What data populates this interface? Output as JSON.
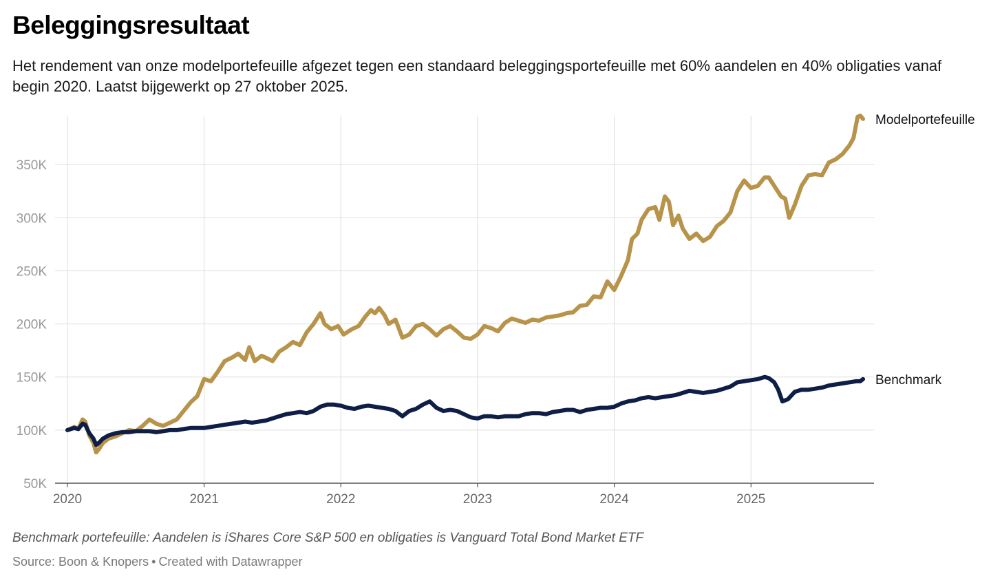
{
  "header": {
    "title": "Beleggingsresultaat",
    "subtitle": "Het rendement van onze modelportefeuille afgezet tegen een standaard beleggingsportefeuille met 60% aandelen en 40% obligaties vanaf begin 2020. Laatst bijgewerkt op 27 oktober 2025."
  },
  "footer": {
    "note": "Benchmark portefeuille: Aandelen is iShares Core S&P 500 en obligaties is Vanguard Total Bond Market ETF",
    "source": "Source: Boon & Knopers",
    "separator": "•",
    "credit": "Created with Datawrapper"
  },
  "colors": {
    "model": "#B8934A",
    "benchmark": "#0E1E46",
    "grid": "#DDDDDD",
    "tick_text": "#999999",
    "axis_text": "#666666"
  },
  "chart_data": {
    "type": "line",
    "title": "Beleggingsresultaat",
    "xlabel": "",
    "ylabel": "",
    "xlim": [
      2020.0,
      2025.9
    ],
    "ylim": [
      50000,
      400000
    ],
    "grid": true,
    "x_ticks": [
      {
        "value": 2020,
        "label": "2020"
      },
      {
        "value": 2021,
        "label": "2021"
      },
      {
        "value": 2022,
        "label": "2022"
      },
      {
        "value": 2023,
        "label": "2023"
      },
      {
        "value": 2024,
        "label": "2024"
      },
      {
        "value": 2025,
        "label": "2025"
      }
    ],
    "y_ticks": [
      {
        "value": 50000,
        "label": "50K"
      },
      {
        "value": 100000,
        "label": "100K"
      },
      {
        "value": 150000,
        "label": "150K"
      },
      {
        "value": 200000,
        "label": "200K"
      },
      {
        "value": 250000,
        "label": "250K"
      },
      {
        "value": 300000,
        "label": "300K"
      },
      {
        "value": 350000,
        "label": "350K"
      }
    ],
    "series": [
      {
        "name": "Modelportefeuille",
        "color": "#B8934A",
        "points": [
          [
            2020.0,
            100000
          ],
          [
            2020.05,
            103000
          ],
          [
            2020.08,
            101000
          ],
          [
            2020.11,
            110000
          ],
          [
            2020.13,
            108000
          ],
          [
            2020.16,
            95000
          ],
          [
            2020.19,
            88000
          ],
          [
            2020.21,
            79000
          ],
          [
            2020.23,
            82000
          ],
          [
            2020.26,
            88000
          ],
          [
            2020.3,
            92000
          ],
          [
            2020.35,
            94000
          ],
          [
            2020.4,
            97000
          ],
          [
            2020.45,
            100000
          ],
          [
            2020.5,
            99000
          ],
          [
            2020.55,
            104000
          ],
          [
            2020.6,
            110000
          ],
          [
            2020.65,
            106000
          ],
          [
            2020.7,
            104000
          ],
          [
            2020.75,
            107000
          ],
          [
            2020.8,
            110000
          ],
          [
            2020.85,
            118000
          ],
          [
            2020.9,
            126000
          ],
          [
            2020.95,
            132000
          ],
          [
            2021.0,
            148000
          ],
          [
            2021.05,
            146000
          ],
          [
            2021.1,
            155000
          ],
          [
            2021.15,
            165000
          ],
          [
            2021.2,
            168000
          ],
          [
            2021.25,
            172000
          ],
          [
            2021.3,
            166000
          ],
          [
            2021.33,
            178000
          ],
          [
            2021.37,
            165000
          ],
          [
            2021.42,
            170000
          ],
          [
            2021.47,
            167000
          ],
          [
            2021.5,
            165000
          ],
          [
            2021.55,
            174000
          ],
          [
            2021.6,
            178000
          ],
          [
            2021.65,
            183000
          ],
          [
            2021.7,
            180000
          ],
          [
            2021.75,
            192000
          ],
          [
            2021.8,
            200000
          ],
          [
            2021.85,
            210000
          ],
          [
            2021.88,
            200000
          ],
          [
            2021.93,
            195000
          ],
          [
            2021.98,
            198000
          ],
          [
            2022.02,
            190000
          ],
          [
            2022.08,
            195000
          ],
          [
            2022.13,
            198000
          ],
          [
            2022.18,
            207000
          ],
          [
            2022.22,
            213000
          ],
          [
            2022.25,
            210000
          ],
          [
            2022.28,
            215000
          ],
          [
            2022.32,
            208000
          ],
          [
            2022.35,
            200000
          ],
          [
            2022.4,
            204000
          ],
          [
            2022.45,
            187000
          ],
          [
            2022.5,
            190000
          ],
          [
            2022.55,
            198000
          ],
          [
            2022.6,
            200000
          ],
          [
            2022.65,
            195000
          ],
          [
            2022.7,
            189000
          ],
          [
            2022.75,
            195000
          ],
          [
            2022.8,
            198000
          ],
          [
            2022.85,
            193000
          ],
          [
            2022.9,
            187000
          ],
          [
            2022.95,
            186000
          ],
          [
            2023.0,
            190000
          ],
          [
            2023.05,
            198000
          ],
          [
            2023.1,
            196000
          ],
          [
            2023.15,
            193000
          ],
          [
            2023.2,
            201000
          ],
          [
            2023.25,
            205000
          ],
          [
            2023.3,
            203000
          ],
          [
            2023.35,
            201000
          ],
          [
            2023.4,
            204000
          ],
          [
            2023.45,
            203000
          ],
          [
            2023.5,
            206000
          ],
          [
            2023.55,
            207000
          ],
          [
            2023.6,
            208000
          ],
          [
            2023.65,
            210000
          ],
          [
            2023.7,
            211000
          ],
          [
            2023.75,
            217000
          ],
          [
            2023.8,
            218000
          ],
          [
            2023.85,
            226000
          ],
          [
            2023.9,
            225000
          ],
          [
            2023.95,
            240000
          ],
          [
            2024.0,
            232000
          ],
          [
            2024.05,
            245000
          ],
          [
            2024.1,
            260000
          ],
          [
            2024.13,
            280000
          ],
          [
            2024.17,
            285000
          ],
          [
            2024.2,
            298000
          ],
          [
            2024.25,
            308000
          ],
          [
            2024.3,
            310000
          ],
          [
            2024.33,
            298000
          ],
          [
            2024.37,
            320000
          ],
          [
            2024.4,
            315000
          ],
          [
            2024.43,
            293000
          ],
          [
            2024.47,
            302000
          ],
          [
            2024.5,
            290000
          ],
          [
            2024.55,
            280000
          ],
          [
            2024.6,
            285000
          ],
          [
            2024.65,
            278000
          ],
          [
            2024.7,
            282000
          ],
          [
            2024.75,
            292000
          ],
          [
            2024.8,
            297000
          ],
          [
            2024.85,
            305000
          ],
          [
            2024.9,
            325000
          ],
          [
            2024.95,
            335000
          ],
          [
            2025.0,
            328000
          ],
          [
            2025.05,
            330000
          ],
          [
            2025.1,
            338000
          ],
          [
            2025.13,
            338000
          ],
          [
            2025.17,
            330000
          ],
          [
            2025.22,
            320000
          ],
          [
            2025.25,
            318000
          ],
          [
            2025.28,
            300000
          ],
          [
            2025.32,
            312000
          ],
          [
            2025.37,
            330000
          ],
          [
            2025.42,
            340000
          ],
          [
            2025.47,
            341000
          ],
          [
            2025.52,
            340000
          ],
          [
            2025.57,
            352000
          ],
          [
            2025.62,
            355000
          ],
          [
            2025.67,
            360000
          ],
          [
            2025.72,
            368000
          ],
          [
            2025.75,
            375000
          ],
          [
            2025.78,
            395000
          ],
          [
            2025.8,
            396000
          ],
          [
            2025.82,
            393000
          ]
        ],
        "end_label": "Modelportefeuille"
      },
      {
        "name": "Benchmark",
        "color": "#0E1E46",
        "points": [
          [
            2020.0,
            100000
          ],
          [
            2020.05,
            102000
          ],
          [
            2020.08,
            101000
          ],
          [
            2020.11,
            106000
          ],
          [
            2020.13,
            105000
          ],
          [
            2020.16,
            97000
          ],
          [
            2020.19,
            92000
          ],
          [
            2020.21,
            86000
          ],
          [
            2020.23,
            88000
          ],
          [
            2020.26,
            92000
          ],
          [
            2020.3,
            95000
          ],
          [
            2020.35,
            97000
          ],
          [
            2020.4,
            98000
          ],
          [
            2020.45,
            98000
          ],
          [
            2020.5,
            99000
          ],
          [
            2020.55,
            99000
          ],
          [
            2020.6,
            99000
          ],
          [
            2020.65,
            98000
          ],
          [
            2020.7,
            99000
          ],
          [
            2020.75,
            100000
          ],
          [
            2020.8,
            100000
          ],
          [
            2020.85,
            101000
          ],
          [
            2020.9,
            102000
          ],
          [
            2020.95,
            102000
          ],
          [
            2021.0,
            102000
          ],
          [
            2021.05,
            103000
          ],
          [
            2021.1,
            104000
          ],
          [
            2021.15,
            105000
          ],
          [
            2021.2,
            106000
          ],
          [
            2021.25,
            107000
          ],
          [
            2021.3,
            108000
          ],
          [
            2021.35,
            107000
          ],
          [
            2021.4,
            108000
          ],
          [
            2021.45,
            109000
          ],
          [
            2021.5,
            111000
          ],
          [
            2021.55,
            113000
          ],
          [
            2021.6,
            115000
          ],
          [
            2021.65,
            116000
          ],
          [
            2021.7,
            117000
          ],
          [
            2021.75,
            116000
          ],
          [
            2021.8,
            118000
          ],
          [
            2021.85,
            122000
          ],
          [
            2021.9,
            124000
          ],
          [
            2021.95,
            124000
          ],
          [
            2022.0,
            123000
          ],
          [
            2022.05,
            121000
          ],
          [
            2022.1,
            120000
          ],
          [
            2022.15,
            122000
          ],
          [
            2022.2,
            123000
          ],
          [
            2022.25,
            122000
          ],
          [
            2022.3,
            121000
          ],
          [
            2022.35,
            120000
          ],
          [
            2022.4,
            118000
          ],
          [
            2022.45,
            113000
          ],
          [
            2022.5,
            118000
          ],
          [
            2022.55,
            120000
          ],
          [
            2022.6,
            124000
          ],
          [
            2022.65,
            127000
          ],
          [
            2022.7,
            121000
          ],
          [
            2022.75,
            118000
          ],
          [
            2022.8,
            119000
          ],
          [
            2022.85,
            118000
          ],
          [
            2022.9,
            115000
          ],
          [
            2022.95,
            112000
          ],
          [
            2023.0,
            111000
          ],
          [
            2023.05,
            113000
          ],
          [
            2023.1,
            113000
          ],
          [
            2023.15,
            112000
          ],
          [
            2023.2,
            113000
          ],
          [
            2023.25,
            113000
          ],
          [
            2023.3,
            113000
          ],
          [
            2023.35,
            115000
          ],
          [
            2023.4,
            116000
          ],
          [
            2023.45,
            116000
          ],
          [
            2023.5,
            115000
          ],
          [
            2023.55,
            117000
          ],
          [
            2023.6,
            118000
          ],
          [
            2023.65,
            119000
          ],
          [
            2023.7,
            119000
          ],
          [
            2023.75,
            117000
          ],
          [
            2023.8,
            119000
          ],
          [
            2023.85,
            120000
          ],
          [
            2023.9,
            121000
          ],
          [
            2023.95,
            121000
          ],
          [
            2024.0,
            122000
          ],
          [
            2024.05,
            125000
          ],
          [
            2024.1,
            127000
          ],
          [
            2024.15,
            128000
          ],
          [
            2024.2,
            130000
          ],
          [
            2024.25,
            131000
          ],
          [
            2024.3,
            130000
          ],
          [
            2024.35,
            131000
          ],
          [
            2024.4,
            132000
          ],
          [
            2024.45,
            133000
          ],
          [
            2024.5,
            135000
          ],
          [
            2024.55,
            137000
          ],
          [
            2024.6,
            136000
          ],
          [
            2024.65,
            135000
          ],
          [
            2024.7,
            136000
          ],
          [
            2024.75,
            137000
          ],
          [
            2024.8,
            139000
          ],
          [
            2024.85,
            141000
          ],
          [
            2024.9,
            145000
          ],
          [
            2024.95,
            146000
          ],
          [
            2025.0,
            147000
          ],
          [
            2025.05,
            148000
          ],
          [
            2025.1,
            150000
          ],
          [
            2025.13,
            149000
          ],
          [
            2025.17,
            145000
          ],
          [
            2025.2,
            138000
          ],
          [
            2025.23,
            127000
          ],
          [
            2025.27,
            129000
          ],
          [
            2025.32,
            136000
          ],
          [
            2025.37,
            138000
          ],
          [
            2025.42,
            138000
          ],
          [
            2025.47,
            139000
          ],
          [
            2025.52,
            140000
          ],
          [
            2025.57,
            142000
          ],
          [
            2025.62,
            143000
          ],
          [
            2025.67,
            144000
          ],
          [
            2025.72,
            145000
          ],
          [
            2025.77,
            146000
          ],
          [
            2025.8,
            146000
          ],
          [
            2025.82,
            148000
          ]
        ],
        "end_label": "Benchmark"
      }
    ]
  }
}
